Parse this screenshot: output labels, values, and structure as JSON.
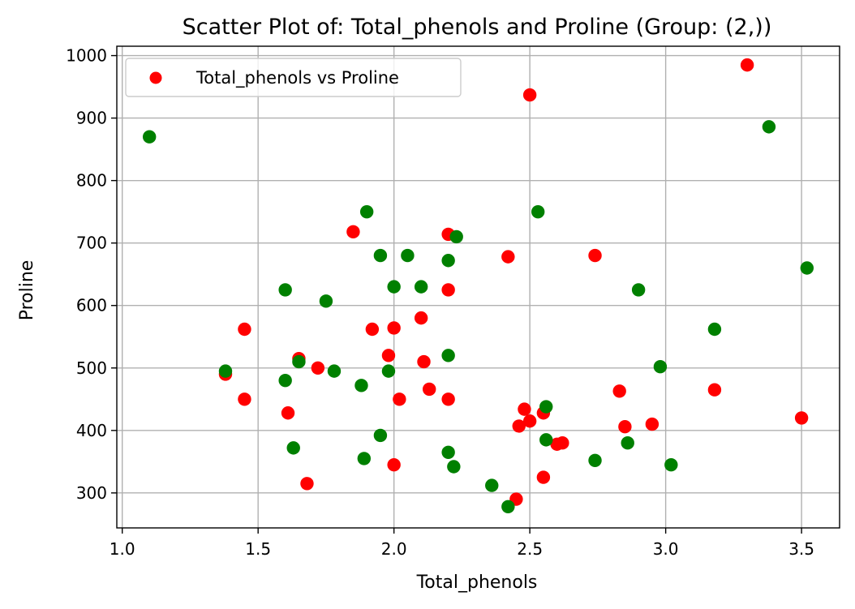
{
  "chart_data": {
    "type": "scatter",
    "title": "Scatter Plot of: Total_phenols and Proline (Group: (2,))",
    "xlabel": "Total_phenols",
    "ylabel": "Proline",
    "xlim": [
      0.98,
      3.64
    ],
    "ylim": [
      244,
      1015
    ],
    "xticks": [
      1.0,
      1.5,
      2.0,
      2.5,
      3.0,
      3.5
    ],
    "xtick_labels": [
      "1.0",
      "1.5",
      "2.0",
      "2.5",
      "3.0",
      "3.5"
    ],
    "yticks": [
      300,
      400,
      500,
      600,
      700,
      800,
      900,
      1000
    ],
    "ytick_labels": [
      "300",
      "400",
      "500",
      "600",
      "700",
      "800",
      "900",
      "1000"
    ],
    "grid": true,
    "legend": {
      "placement": "top-left",
      "entries": [
        {
          "label": "Total_phenols vs Proline",
          "color": "#ff0000"
        }
      ]
    },
    "series": [
      {
        "name": "Total_phenols vs Proline",
        "color": "#ff0000",
        "points": [
          [
            1.38,
            490
          ],
          [
            1.45,
            450
          ],
          [
            1.45,
            562
          ],
          [
            1.61,
            428
          ],
          [
            1.65,
            515
          ],
          [
            1.68,
            315
          ],
          [
            1.72,
            500
          ],
          [
            1.85,
            718
          ],
          [
            1.92,
            562
          ],
          [
            1.98,
            520
          ],
          [
            2.0,
            345
          ],
          [
            2.0,
            564
          ],
          [
            2.02,
            450
          ],
          [
            2.1,
            580
          ],
          [
            2.11,
            510
          ],
          [
            2.13,
            466
          ],
          [
            2.2,
            714
          ],
          [
            2.2,
            625
          ],
          [
            2.2,
            450
          ],
          [
            2.42,
            678
          ],
          [
            2.45,
            290
          ],
          [
            2.46,
            407
          ],
          [
            2.48,
            434
          ],
          [
            2.5,
            415
          ],
          [
            2.5,
            937
          ],
          [
            2.55,
            428
          ],
          [
            2.55,
            325
          ],
          [
            2.6,
            378
          ],
          [
            2.62,
            380
          ],
          [
            2.74,
            680
          ],
          [
            2.83,
            463
          ],
          [
            2.85,
            406
          ],
          [
            2.95,
            410
          ],
          [
            3.18,
            465
          ],
          [
            3.3,
            985
          ],
          [
            3.5,
            420
          ]
        ]
      },
      {
        "color": "#008000",
        "points": [
          [
            1.1,
            870
          ],
          [
            1.38,
            495
          ],
          [
            1.6,
            625
          ],
          [
            1.6,
            480
          ],
          [
            1.63,
            372
          ],
          [
            1.65,
            510
          ],
          [
            1.75,
            607
          ],
          [
            1.78,
            495
          ],
          [
            1.88,
            472
          ],
          [
            1.89,
            355
          ],
          [
            1.9,
            750
          ],
          [
            1.95,
            680
          ],
          [
            1.95,
            392
          ],
          [
            1.98,
            495
          ],
          [
            2.0,
            630
          ],
          [
            2.05,
            680
          ],
          [
            2.1,
            630
          ],
          [
            2.2,
            672
          ],
          [
            2.2,
            520
          ],
          [
            2.2,
            365
          ],
          [
            2.22,
            342
          ],
          [
            2.23,
            710
          ],
          [
            2.36,
            312
          ],
          [
            2.42,
            278
          ],
          [
            2.53,
            750
          ],
          [
            2.56,
            438
          ],
          [
            2.56,
            385
          ],
          [
            2.74,
            352
          ],
          [
            2.86,
            380
          ],
          [
            2.9,
            625
          ],
          [
            2.98,
            502
          ],
          [
            3.02,
            345
          ],
          [
            3.18,
            562
          ],
          [
            3.38,
            886
          ],
          [
            3.52,
            660
          ]
        ]
      }
    ]
  }
}
